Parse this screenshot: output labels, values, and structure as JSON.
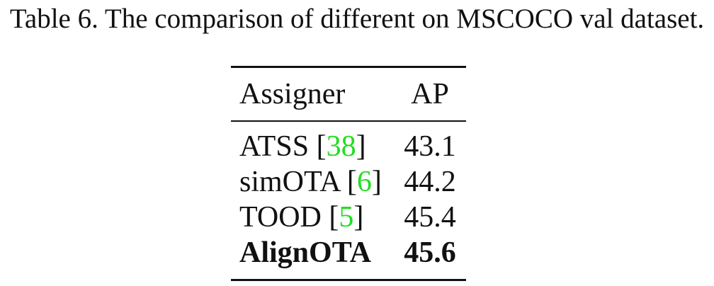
{
  "caption": "Table 6. The comparison of different on MSCOCO val dataset.",
  "table": {
    "headers": {
      "assigner": "Assigner",
      "ap": "AP"
    },
    "rows": [
      {
        "assigner": "ATSS",
        "cite": "38",
        "ap": "43.1",
        "bold": false
      },
      {
        "assigner": "simOTA",
        "cite": "6",
        "ap": "44.2",
        "bold": false
      },
      {
        "assigner": "TOOD",
        "cite": "5",
        "ap": "45.4",
        "bold": false
      },
      {
        "assigner": "AlignOTA",
        "cite": "",
        "ap": "45.6",
        "bold": true
      }
    ]
  },
  "colors": {
    "citation": "#22dd22",
    "text": "#111111"
  }
}
